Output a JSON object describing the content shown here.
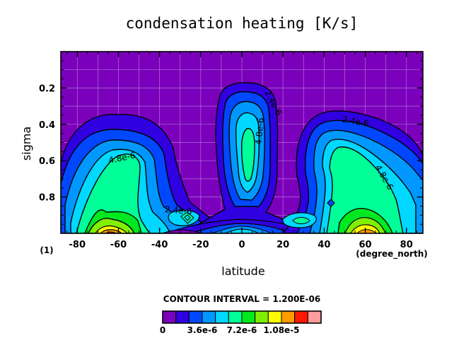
{
  "chart_data": {
    "type": "contour",
    "title": "condensation heating [K/s]",
    "xlabel": "latitude",
    "ylabel": "sigma",
    "x_unit_label": "(degree_north)",
    "corner_label": "(1)",
    "xlim": [
      -88,
      88
    ],
    "ylim": [
      1.0,
      0.0
    ],
    "x_ticks": [
      -80,
      -60,
      -40,
      -20,
      0,
      20,
      40,
      60,
      80
    ],
    "x_tick_labels": [
      "-80",
      "-60",
      "-40",
      "-20",
      "0",
      "20",
      "40",
      "60",
      "80"
    ],
    "y_ticks": [
      0.2,
      0.4,
      0.6,
      0.8
    ],
    "y_tick_labels": [
      "0.2",
      "0.4",
      "0.6",
      "0.8"
    ],
    "grid": true,
    "contour_labels": [
      "2.4e-6",
      "4.8e-6",
      "2.4e-6",
      "4.8e-6",
      "2.4e-6",
      "4.8e-6"
    ],
    "contour_interval_text": "CONTOUR INTERVAL = 1.200E-06",
    "colorbar": {
      "levels": [
        0,
        1.2e-06,
        2.4e-06,
        3.6e-06,
        4.8e-06,
        6e-06,
        7.2e-06,
        8.4e-06,
        9.6e-06,
        1.08e-05,
        1.2e-05,
        1.32e-05
      ],
      "tick_labels": [
        "0",
        "3.6e-6",
        "7.2e-6",
        "1.08e-5"
      ],
      "colors": [
        "#7b00bb",
        "#3000e0",
        "#0048ff",
        "#0098ff",
        "#00d8ff",
        "#00ff98",
        "#00e820",
        "#80f000",
        "#ffff00",
        "#ff9c00",
        "#ff1800",
        "#ff9c9c"
      ]
    }
  }
}
